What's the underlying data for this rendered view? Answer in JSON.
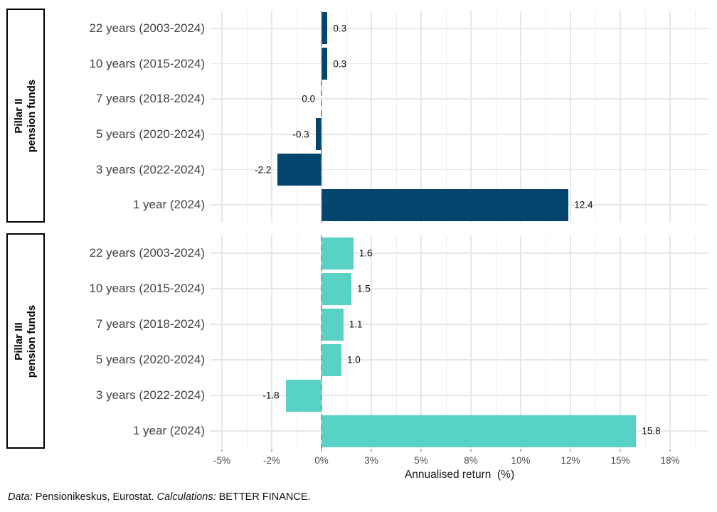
{
  "chart_data": {
    "type": "bar",
    "orientation": "horizontal",
    "xlabel": "Annualised return  (%)",
    "categories": [
      "22 years (2003-2024)",
      "10 years (2015-2024)",
      "7 years (2018-2024)",
      "5 years (2020-2024)",
      "3 years (2022-2024)",
      "1 year (2024)"
    ],
    "series": [
      {
        "name": "Pillar II pension funds",
        "strip_line1": "Pillar II",
        "strip_line2": "pension funds",
        "color": "#04456e",
        "values": [
          0.3,
          0.3,
          0.0,
          -0.3,
          -2.2,
          12.4
        ],
        "labels": [
          "0.3",
          "0.3",
          "0.0",
          "-0.3",
          "-2.2",
          "12.4"
        ]
      },
      {
        "name": "Pillar III pension funds",
        "strip_line1": "Pillar III",
        "strip_line2": "pension funds",
        "color": "#58d2c4",
        "values": [
          1.6,
          1.5,
          1.1,
          1.0,
          -1.8,
          15.8
        ],
        "labels": [
          "1.6",
          "1.5",
          "1.1",
          "1.0",
          "-1.8",
          "15.8"
        ]
      }
    ],
    "x_ticks": [
      {
        "value": -5,
        "label": "-5%"
      },
      {
        "value": -2.5,
        "label": "-2%"
      },
      {
        "value": 0,
        "label": "0%"
      },
      {
        "value": 2.5,
        "label": "3%"
      },
      {
        "value": 5,
        "label": "5%"
      },
      {
        "value": 7.5,
        "label": "8%"
      },
      {
        "value": 10,
        "label": "10%"
      },
      {
        "value": 12.5,
        "label": "12%"
      },
      {
        "value": 15,
        "label": "15%"
      },
      {
        "value": 17.5,
        "label": "18%"
      }
    ],
    "xlim": [
      -5.6,
      19.4
    ],
    "grid": {
      "show": true,
      "major_color": "#e7e7e7",
      "minor_color": "#efefef"
    },
    "zero_line": {
      "style": "dashed",
      "color": "#9a9a9a"
    },
    "legend": "none"
  },
  "caption": {
    "parts": [
      {
        "text": "Data:",
        "italic": true
      },
      {
        "text": " Pensionikeskus, Eurostat. ",
        "italic": false
      },
      {
        "text": "Calculations:",
        "italic": true
      },
      {
        "text": " BETTER FINANCE.",
        "italic": false
      }
    ]
  },
  "colors": {
    "pillar2_bar": "#04456e",
    "pillar3_bar": "#58d2c4",
    "background": "#ffffff",
    "category_text": "#434343",
    "tick_text": "#4d4d4d"
  }
}
